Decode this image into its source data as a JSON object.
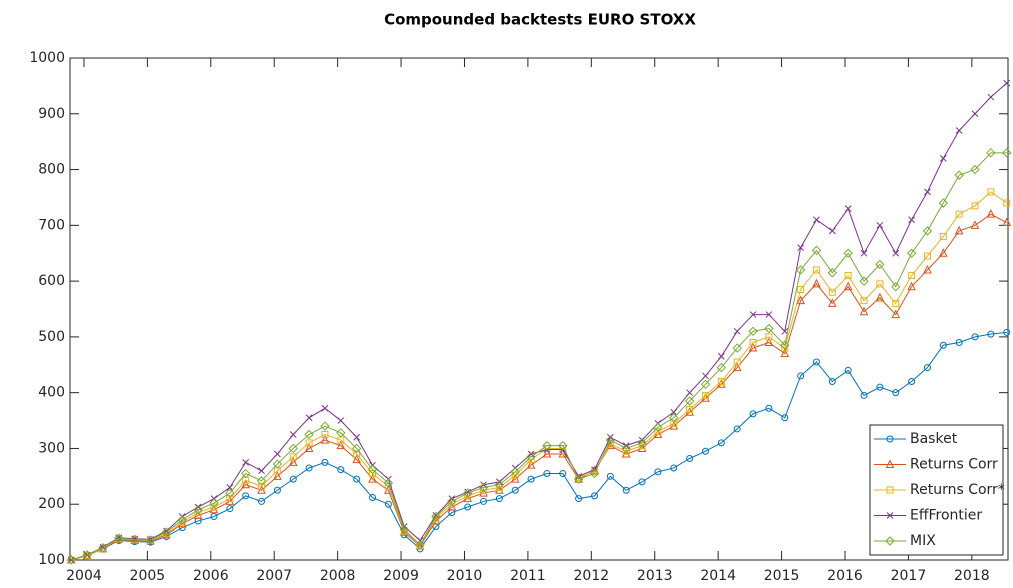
{
  "chart_data": {
    "type": "line",
    "title": "Compounded backtests EURO STOXX",
    "x": [
      2003.8,
      2004.05,
      2004.3,
      2004.55,
      2004.8,
      2005.05,
      2005.3,
      2005.55,
      2005.8,
      2006.05,
      2006.3,
      2006.55,
      2006.8,
      2007.05,
      2007.3,
      2007.55,
      2007.8,
      2008.05,
      2008.3,
      2008.55,
      2008.8,
      2009.05,
      2009.3,
      2009.55,
      2009.8,
      2010.05,
      2010.3,
      2010.55,
      2010.8,
      2011.05,
      2011.3,
      2011.55,
      2011.8,
      2012.05,
      2012.3,
      2012.55,
      2012.8,
      2013.05,
      2013.3,
      2013.55,
      2013.8,
      2014.05,
      2014.3,
      2014.55,
      2014.8,
      2015.05,
      2015.3,
      2015.55,
      2015.8,
      2016.05,
      2016.3,
      2016.55,
      2016.8,
      2017.05,
      2017.3,
      2017.55,
      2017.8,
      2018.05,
      2018.3,
      2018.55
    ],
    "series": [
      {
        "name": "Basket",
        "color": "#0072BD",
        "marker": "circle",
        "values": [
          100,
          108,
          120,
          135,
          133,
          132,
          142,
          158,
          170,
          178,
          192,
          215,
          205,
          225,
          245,
          265,
          275,
          262,
          245,
          212,
          200,
          145,
          120,
          160,
          185,
          195,
          205,
          210,
          225,
          245,
          255,
          255,
          210,
          215,
          250,
          225,
          240,
          258,
          265,
          282,
          295,
          310,
          335,
          362,
          372,
          355,
          430,
          455,
          420,
          440,
          395,
          410,
          400,
          420,
          445,
          485,
          490,
          500,
          505,
          508
        ]
      },
      {
        "name": "Returns Corr",
        "color": "#D95319",
        "marker": "triangle",
        "values": [
          100,
          108,
          120,
          137,
          135,
          134,
          145,
          165,
          180,
          190,
          205,
          235,
          225,
          250,
          275,
          300,
          315,
          305,
          280,
          245,
          225,
          150,
          125,
          170,
          195,
          210,
          220,
          225,
          245,
          270,
          290,
          290,
          245,
          260,
          305,
          290,
          300,
          325,
          340,
          365,
          390,
          415,
          445,
          480,
          490,
          470,
          565,
          595,
          560,
          590,
          545,
          570,
          540,
          590,
          620,
          650,
          690,
          700,
          720,
          705
        ]
      },
      {
        "name": "Returns Corr*",
        "color": "#EDB120",
        "marker": "square",
        "values": [
          100,
          108,
          121,
          138,
          136,
          135,
          147,
          168,
          185,
          195,
          210,
          243,
          232,
          260,
          285,
          310,
          325,
          315,
          290,
          255,
          232,
          152,
          126,
          175,
          200,
          215,
          225,
          230,
          252,
          280,
          300,
          300,
          248,
          258,
          308,
          295,
          305,
          330,
          345,
          370,
          395,
          420,
          455,
          490,
          500,
          480,
          585,
          620,
          580,
          610,
          565,
          595,
          560,
          610,
          645,
          680,
          720,
          735,
          760,
          740
        ]
      },
      {
        "name": "EffFrontier",
        "color": "#7E2F8E",
        "marker": "x",
        "values": [
          100,
          109,
          123,
          140,
          138,
          137,
          152,
          178,
          195,
          210,
          230,
          275,
          260,
          290,
          325,
          355,
          372,
          350,
          320,
          270,
          245,
          160,
          135,
          180,
          210,
          222,
          235,
          240,
          265,
          290,
          298,
          298,
          250,
          262,
          320,
          305,
          315,
          345,
          365,
          400,
          430,
          465,
          510,
          540,
          540,
          510,
          660,
          710,
          690,
          730,
          650,
          700,
          650,
          710,
          760,
          820,
          870,
          900,
          930,
          955
        ]
      },
      {
        "name": "MIX",
        "color": "#77AC30",
        "marker": "diamond",
        "values": [
          100,
          109,
          122,
          139,
          137,
          136,
          150,
          172,
          190,
          202,
          220,
          255,
          242,
          272,
          300,
          325,
          340,
          328,
          300,
          262,
          238,
          155,
          127,
          178,
          205,
          220,
          230,
          235,
          258,
          285,
          305,
          305,
          245,
          255,
          315,
          300,
          310,
          338,
          355,
          385,
          415,
          445,
          480,
          510,
          515,
          485,
          620,
          655,
          615,
          650,
          600,
          630,
          590,
          650,
          690,
          740,
          790,
          800,
          830,
          830
        ]
      }
    ],
    "xlim": [
      2003.78,
      2018.57
    ],
    "xticks": [
      2004,
      2005,
      2006,
      2007,
      2008,
      2009,
      2010,
      2011,
      2012,
      2013,
      2014,
      2015,
      2016,
      2017,
      2018
    ],
    "ylim": [
      100,
      1000
    ],
    "yticks": [
      100,
      200,
      300,
      400,
      500,
      600,
      700,
      800,
      900,
      1000
    ],
    "legend": "lower right"
  }
}
